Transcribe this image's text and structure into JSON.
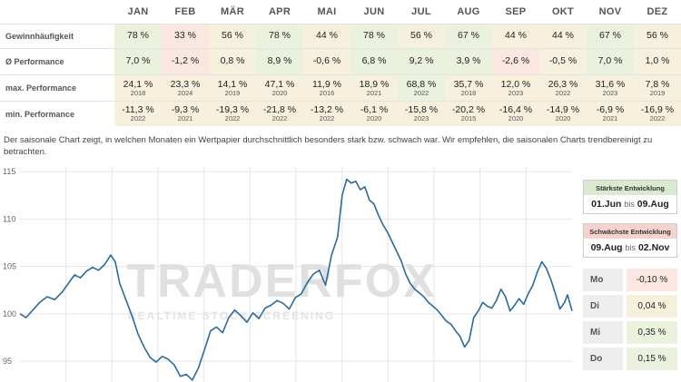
{
  "stats_table": {
    "months": [
      "JAN",
      "FEB",
      "MÄR",
      "APR",
      "MAI",
      "JUN",
      "JUL",
      "AUG",
      "SEP",
      "OKT",
      "NOV",
      "DEZ"
    ],
    "rows": [
      {
        "label": "Gewinnhäufigkeit",
        "cells": [
          {
            "v": "78 %",
            "tone": "pos"
          },
          {
            "v": "33 %",
            "tone": "neg"
          },
          {
            "v": "56 %",
            "tone": "neu"
          },
          {
            "v": "78 %",
            "tone": "pos"
          },
          {
            "v": "44 %",
            "tone": "neu"
          },
          {
            "v": "78 %",
            "tone": "pos"
          },
          {
            "v": "56 %",
            "tone": "neu"
          },
          {
            "v": "67 %",
            "tone": "pos"
          },
          {
            "v": "44 %",
            "tone": "neu"
          },
          {
            "v": "44 %",
            "tone": "neu"
          },
          {
            "v": "67 %",
            "tone": "pos"
          },
          {
            "v": "56 %",
            "tone": "neu"
          }
        ]
      },
      {
        "label": "Ø Performance",
        "cells": [
          {
            "v": "7,0 %",
            "tone": "pos"
          },
          {
            "v": "-1,2 %",
            "tone": "neg"
          },
          {
            "v": "0,8 %",
            "tone": "neu"
          },
          {
            "v": "8,9 %",
            "tone": "pos"
          },
          {
            "v": "-0,6 %",
            "tone": "neu"
          },
          {
            "v": "6,8 %",
            "tone": "pos"
          },
          {
            "v": "9,2 %",
            "tone": "pos"
          },
          {
            "v": "3,9 %",
            "tone": "pos"
          },
          {
            "v": "-2,6 %",
            "tone": "neg"
          },
          {
            "v": "-0,5 %",
            "tone": "neu"
          },
          {
            "v": "7,0 %",
            "tone": "pos"
          },
          {
            "v": "1,0 %",
            "tone": "neu"
          }
        ]
      },
      {
        "label": "max. Performance",
        "cells": [
          {
            "v": "24,1 %",
            "y": "2018",
            "tone": "neu"
          },
          {
            "v": "23,3 %",
            "y": "2024",
            "tone": "neu"
          },
          {
            "v": "14,1 %",
            "y": "2019",
            "tone": "neu"
          },
          {
            "v": "47,1 %",
            "y": "2020",
            "tone": "neu"
          },
          {
            "v": "11,9 %",
            "y": "2016",
            "tone": "neu"
          },
          {
            "v": "18,9 %",
            "y": "2021",
            "tone": "neu"
          },
          {
            "v": "68,8 %",
            "y": "2022",
            "tone": "pos"
          },
          {
            "v": "35,7 %",
            "y": "2018",
            "tone": "neu"
          },
          {
            "v": "12,0 %",
            "y": "2023",
            "tone": "neu"
          },
          {
            "v": "26,3 %",
            "y": "2022",
            "tone": "neu"
          },
          {
            "v": "31,6 %",
            "y": "2023",
            "tone": "neu"
          },
          {
            "v": "7,8 %",
            "y": "2019",
            "tone": "neu"
          }
        ]
      },
      {
        "label": "min. Performance",
        "cells": [
          {
            "v": "-11,3 %",
            "y": "2022",
            "tone": "neu"
          },
          {
            "v": "-9,3 %",
            "y": "2021",
            "tone": "neu"
          },
          {
            "v": "-19,3 %",
            "y": "2022",
            "tone": "neu"
          },
          {
            "v": "-21,8 %",
            "y": "2022",
            "tone": "neu"
          },
          {
            "v": "-13,2 %",
            "y": "2022",
            "tone": "neu"
          },
          {
            "v": "-6,1 %",
            "y": "2020",
            "tone": "neu"
          },
          {
            "v": "-15,8 %",
            "y": "2023",
            "tone": "neu"
          },
          {
            "v": "-20,2 %",
            "y": "2015",
            "tone": "neu"
          },
          {
            "v": "-16,4 %",
            "y": "2020",
            "tone": "neu"
          },
          {
            "v": "-14,9 %",
            "y": "2020",
            "tone": "neu"
          },
          {
            "v": "-6,9 %",
            "y": "2021",
            "tone": "neu"
          },
          {
            "v": "-16,9 %",
            "y": "2022",
            "tone": "neu"
          }
        ]
      }
    ]
  },
  "description": "Der saisonale Chart zeigt, in welchen Monaten ein Wertpapier durchschnittlich besonders stark bzw. schwach war. Wir empfehlen, die saisonalen Charts trendbereinigt zu betrachten.",
  "watermark": {
    "brand": "TRADERFOX",
    "tagline": "REALTIME STOCK SCREENING"
  },
  "strongest": {
    "title": "Stärkste Entwicklung",
    "from": "01.Jun",
    "sep": "bis",
    "to": "09.Aug"
  },
  "weakest": {
    "title": "Schwächste Entwicklung",
    "from": "09.Aug",
    "sep": "bis",
    "to": "02.Nov"
  },
  "weekdays": [
    {
      "label": "Mo",
      "value": "-0,10 %",
      "tone": "neg"
    },
    {
      "label": "Di",
      "value": "0,04 %",
      "tone": "neu"
    },
    {
      "label": "Mi",
      "value": "0,35 %",
      "tone": "pos"
    },
    {
      "label": "Do",
      "value": "0,15 %",
      "tone": "pos"
    }
  ],
  "colors": {
    "line": "#2b6a99",
    "pos": "#eaf2dd",
    "neg": "#fbe6e1",
    "neu": "#f7f0dd",
    "grid": "#e6e6e6"
  },
  "chart_data": {
    "type": "line",
    "title": "",
    "xlabel": "",
    "ylabel": "",
    "ylim": [
      92.8,
      115.5
    ],
    "yticks": [
      95,
      100,
      105,
      110,
      115
    ],
    "grid": true,
    "x_range": [
      0,
      365
    ],
    "series": [
      {
        "name": "",
        "points": [
          [
            0,
            100
          ],
          [
            4,
            99.6
          ],
          [
            8,
            100.3
          ],
          [
            13,
            101.2
          ],
          [
            18,
            101.8
          ],
          [
            23,
            101.5
          ],
          [
            28,
            102.3
          ],
          [
            32,
            103.2
          ],
          [
            36,
            104.1
          ],
          [
            40,
            103.8
          ],
          [
            44,
            104.5
          ],
          [
            48,
            104.9
          ],
          [
            52,
            104.6
          ],
          [
            56,
            105.2
          ],
          [
            60,
            106.2
          ],
          [
            63,
            105.5
          ],
          [
            66,
            103.2
          ],
          [
            70,
            101.5
          ],
          [
            74,
            99.8
          ],
          [
            78,
            97.9
          ],
          [
            82,
            96.5
          ],
          [
            86,
            95.4
          ],
          [
            90,
            94.9
          ],
          [
            94,
            95.5
          ],
          [
            98,
            95.2
          ],
          [
            102,
            94.6
          ],
          [
            106,
            93.4
          ],
          [
            110,
            93.6
          ],
          [
            114,
            93.0
          ],
          [
            118,
            94.3
          ],
          [
            122,
            96.2
          ],
          [
            126,
            98.2
          ],
          [
            130,
            98.6
          ],
          [
            134,
            98.0
          ],
          [
            138,
            99.6
          ],
          [
            142,
            100.4
          ],
          [
            146,
            99.8
          ],
          [
            150,
            99.1
          ],
          [
            154,
            100.1
          ],
          [
            158,
            99.5
          ],
          [
            162,
            100.6
          ],
          [
            166,
            100.9
          ],
          [
            170,
            101.4
          ],
          [
            174,
            101.1
          ],
          [
            178,
            100.5
          ],
          [
            182,
            101.7
          ],
          [
            186,
            102.1
          ],
          [
            190,
            103.3
          ],
          [
            194,
            104.2
          ],
          [
            198,
            104.6
          ],
          [
            202,
            103.0
          ],
          [
            206,
            106.2
          ],
          [
            210,
            108.1
          ],
          [
            213,
            112.5
          ],
          [
            216,
            114.2
          ],
          [
            219,
            113.8
          ],
          [
            222,
            114.0
          ],
          [
            225,
            113.1
          ],
          [
            228,
            113.4
          ],
          [
            231,
            112.0
          ],
          [
            234,
            111.6
          ],
          [
            237,
            110.4
          ],
          [
            240,
            109.4
          ],
          [
            243,
            108.6
          ],
          [
            246,
            107.6
          ],
          [
            249,
            106.6
          ],
          [
            252,
            105.6
          ],
          [
            255,
            104.2
          ],
          [
            258,
            103.2
          ],
          [
            261,
            102.6
          ],
          [
            264,
            102.2
          ],
          [
            267,
            101.8
          ],
          [
            270,
            101.2
          ],
          [
            273,
            100.8
          ],
          [
            276,
            100.4
          ],
          [
            279,
            99.8
          ],
          [
            282,
            99.2
          ],
          [
            285,
            98.9
          ],
          [
            288,
            98.2
          ],
          [
            291,
            97.6
          ],
          [
            294,
            96.5
          ],
          [
            297,
            97.2
          ],
          [
            300,
            99.6
          ],
          [
            303,
            100.3
          ],
          [
            306,
            101.2
          ],
          [
            309,
            100.8
          ],
          [
            312,
            100.6
          ],
          [
            315,
            101.4
          ],
          [
            318,
            102.6
          ],
          [
            321,
            101.8
          ],
          [
            324,
            100.3
          ],
          [
            327,
            100.9
          ],
          [
            330,
            101.6
          ],
          [
            333,
            101.0
          ],
          [
            336,
            102.1
          ],
          [
            339,
            103.0
          ],
          [
            342,
            104.4
          ],
          [
            345,
            105.5
          ],
          [
            348,
            104.8
          ],
          [
            351,
            103.6
          ],
          [
            354,
            102.1
          ],
          [
            357,
            100.5
          ],
          [
            360,
            101.2
          ],
          [
            362,
            102.0
          ],
          [
            365,
            100.3
          ]
        ]
      }
    ]
  }
}
